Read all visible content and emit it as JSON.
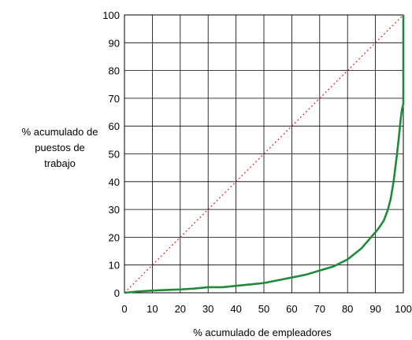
{
  "chart_data": {
    "type": "line",
    "xlabel": "% acumulado de empleadores",
    "ylabel_lines": [
      "% acumulado de",
      "puestos de",
      "trabajo"
    ],
    "xlim": [
      0,
      100
    ],
    "ylim": [
      0,
      100
    ],
    "xticks": [
      "0",
      "10",
      "20",
      "30",
      "40",
      "50",
      "60",
      "70",
      "80",
      "90",
      "100"
    ],
    "yticks": [
      "0",
      "10",
      "20",
      "30",
      "40",
      "50",
      "60",
      "70",
      "80",
      "90",
      "100"
    ],
    "grid": true,
    "series": [
      {
        "style": "dotted",
        "color": "#e02020",
        "x": [
          0,
          100
        ],
        "y": [
          0,
          100
        ]
      },
      {
        "style": "solid",
        "color": "#1f8a3a",
        "x": [
          0,
          5,
          10,
          15,
          20,
          25,
          30,
          35,
          40,
          45,
          50,
          55,
          60,
          65,
          70,
          75,
          80,
          85,
          88,
          91,
          93,
          94.5,
          95.5,
          96.5,
          97.5,
          98.3,
          99,
          99.5,
          100,
          100
        ],
        "y": [
          0,
          0.5,
          0.8,
          1,
          1.2,
          1.5,
          2,
          2,
          2.5,
          3,
          3.5,
          4.5,
          5.5,
          6.5,
          8,
          9.5,
          12,
          16,
          19.5,
          23,
          26,
          30,
          34,
          40,
          48,
          55,
          62,
          66,
          68,
          100
        ]
      }
    ]
  }
}
